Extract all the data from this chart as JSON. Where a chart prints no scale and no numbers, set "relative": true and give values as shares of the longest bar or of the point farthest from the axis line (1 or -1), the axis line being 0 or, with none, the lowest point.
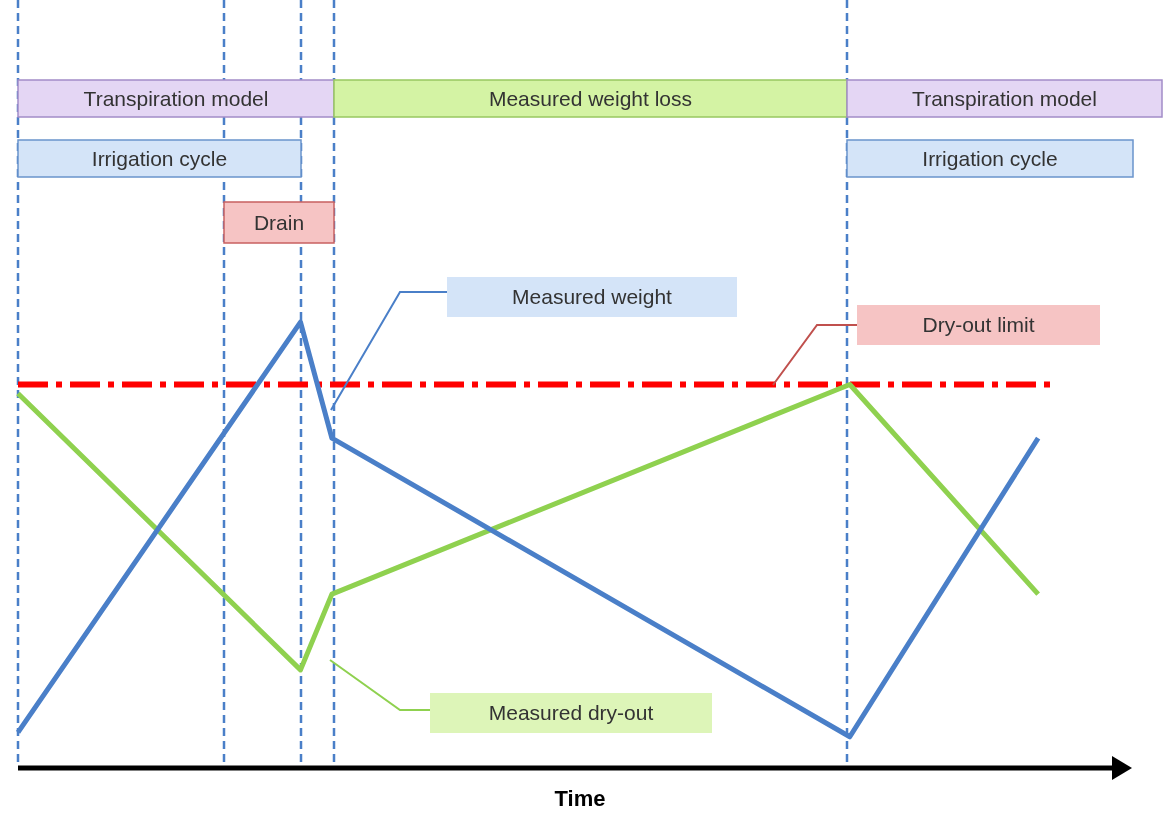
{
  "chart_data": {
    "type": "line",
    "relative": true,
    "xlabel": "Time",
    "legend": false,
    "grid": "x",
    "marker": "none",
    "line_style": "solid",
    "categories": [
      null,
      null,
      null,
      null,
      null,
      null,
      null,
      null,
      null,
      null,
      null,
      null,
      null,
      null,
      null,
      null,
      null,
      null,
      null,
      null,
      null,
      null,
      null,
      null,
      null,
      null,
      null,
      null,
      null,
      null,
      null,
      null,
      null,
      null,
      null,
      null,
      null,
      null,
      null,
      null,
      null,
      null,
      null,
      null,
      null,
      null,
      null,
      null,
      null,
      null,
      null,
      null,
      null,
      null,
      null,
      null,
      null,
      null,
      null,
      null,
      null,
      null,
      null,
      null,
      null,
      null,
      null,
      null,
      null,
      null,
      null,
      null,
      null
    ],
    "series": [
      {
        "color": "#4a7fc8",
        "values": [
          0.08,
          null,
          null,
          null,
          null,
          null,
          null,
          null,
          null,
          null,
          null,
          null,
          null,
          null,
          null,
          null,
          null,
          null,
          1,
          null,
          0.74,
          null,
          null,
          null,
          null,
          null,
          null,
          null,
          null,
          null,
          null,
          null,
          null,
          null,
          null,
          null,
          null,
          null,
          null,
          null,
          null,
          null,
          null,
          null,
          null,
          null,
          null,
          null,
          null,
          null,
          null,
          null,
          null,
          0.07,
          null,
          null,
          null,
          null,
          null,
          null,
          null,
          null,
          null,
          null,
          null,
          0.74,
          null,
          null,
          null,
          null,
          null,
          null,
          null
        ]
      },
      {
        "color": "#8fd14f",
        "values": [
          0.84,
          null,
          null,
          null,
          null,
          null,
          null,
          null,
          null,
          null,
          null,
          null,
          null,
          null,
          null,
          null,
          null,
          null,
          0.22,
          null,
          0.39,
          null,
          null,
          null,
          null,
          null,
          null,
          null,
          null,
          null,
          null,
          null,
          null,
          null,
          null,
          null,
          null,
          null,
          null,
          null,
          null,
          null,
          null,
          null,
          null,
          null,
          null,
          null,
          null,
          null,
          null,
          null,
          null,
          0.86,
          null,
          null,
          null,
          null,
          null,
          null,
          null,
          null,
          null,
          null,
          null,
          0.39,
          null,
          null,
          null,
          null,
          null,
          null,
          null
        ]
      }
    ],
    "ref_lines": [
      {
        "axis": "y",
        "value": 0.86,
        "color": "#ff0000",
        "line_style": "dashed",
        "label": "Dry-out limit"
      }
    ],
    "annotations": [
      "Transpiration model",
      "Measured weight loss",
      "Transpiration model",
      "Irrigation cycle",
      "Irrigation cycle",
      "Drain",
      "Measured weight",
      "Measured dry-out"
    ]
  }
}
